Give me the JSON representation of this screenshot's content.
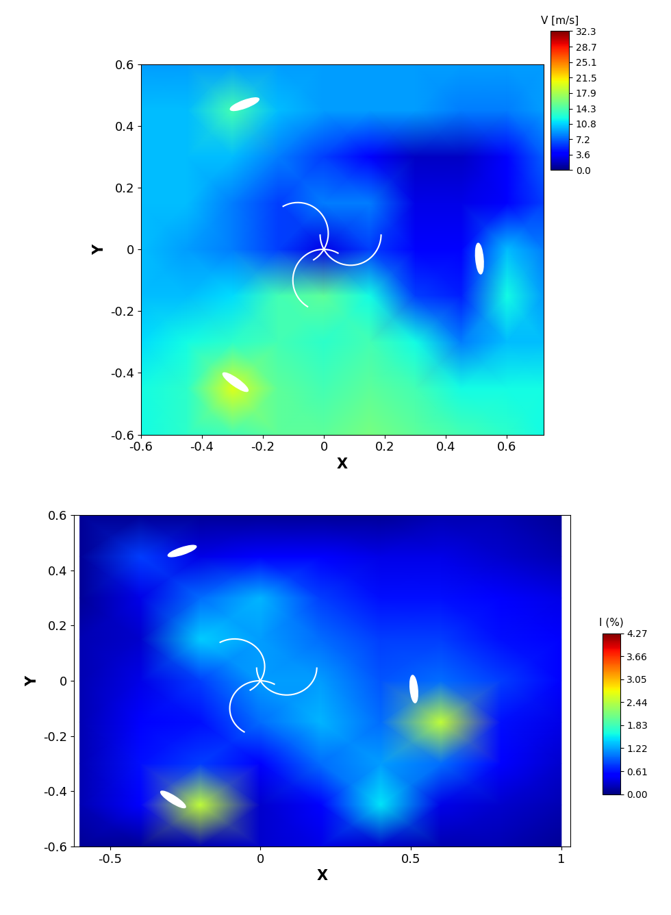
{
  "chart_data": [
    {
      "type": "heatmap",
      "xlabel": "X",
      "ylabel": "Y",
      "xlim": [
        -0.6,
        0.72
      ],
      "ylim": [
        -0.6,
        0.6
      ],
      "xticks": [
        -0.6,
        -0.4,
        -0.2,
        0,
        0.2,
        0.4,
        0.6
      ],
      "yticks": [
        -0.6,
        -0.4,
        -0.2,
        0,
        0.2,
        0.4,
        0.6
      ],
      "x": [
        -0.6,
        -0.45,
        -0.3,
        -0.15,
        0,
        0.15,
        0.3,
        0.45,
        0.6,
        0.72
      ],
      "y": [
        -0.6,
        -0.45,
        -0.3,
        -0.15,
        0,
        0.15,
        0.3,
        0.45,
        0.6
      ],
      "cells": [
        [
          12,
          13,
          14,
          15,
          15,
          16,
          15,
          14,
          13,
          12
        ],
        [
          12,
          13,
          20,
          15,
          14,
          15,
          14,
          12,
          12,
          12
        ],
        [
          11,
          12,
          13,
          14,
          13,
          14,
          12,
          8,
          10,
          10
        ],
        [
          10,
          10,
          11,
          14,
          15,
          12,
          6,
          5,
          12,
          9
        ],
        [
          10,
          9,
          8,
          6,
          3,
          6,
          4,
          4,
          10,
          8
        ],
        [
          10,
          10,
          8,
          6,
          8,
          8,
          3,
          3,
          4,
          6
        ],
        [
          10,
          10,
          10,
          8,
          6,
          4,
          2,
          2,
          4,
          7
        ],
        [
          10,
          10,
          14,
          10,
          9,
          9,
          9,
          8,
          8,
          9
        ],
        [
          9,
          9,
          9,
          9,
          9,
          9,
          9,
          9,
          9,
          9
        ]
      ],
      "colorbar": {
        "label": "V [m/s]",
        "range": [
          0,
          32.3
        ],
        "ticks": [
          {
            "value": 0,
            "label": "0.0"
          },
          3.6,
          7.2,
          10.8,
          14.3,
          17.9,
          21.5,
          25.1,
          28.7,
          32.3
        ]
      }
    },
    {
      "type": "heatmap",
      "xlabel": "X",
      "ylabel": "Y",
      "xlim": [
        -0.62,
        1.03
      ],
      "ylim": [
        -0.6,
        0.6
      ],
      "xticks": [
        -0.5,
        0,
        0.5,
        1
      ],
      "yticks": [
        -0.6,
        -0.4,
        -0.2,
        0,
        0.2,
        0.4,
        0.6
      ],
      "x": [
        -0.6,
        -0.4,
        -0.2,
        0,
        0.2,
        0.4,
        0.6,
        0.8,
        1.0
      ],
      "y": [
        -0.6,
        -0.45,
        -0.3,
        -0.15,
        0,
        0.15,
        0.3,
        0.45,
        0.6
      ],
      "cells": [
        [
          0.1,
          0.1,
          0.2,
          0.3,
          0.4,
          0.3,
          0.2,
          0.2,
          0.1
        ],
        [
          0.2,
          0.5,
          2.5,
          0.3,
          0.5,
          1.5,
          0.4,
          0.3,
          0.2
        ],
        [
          0.2,
          0.6,
          0.8,
          0.5,
          1.0,
          1.2,
          1.0,
          0.5,
          0.3
        ],
        [
          0.2,
          0.5,
          0.6,
          1.0,
          1.3,
          1.0,
          2.5,
          0.6,
          0.4
        ],
        [
          0.2,
          0.4,
          0.8,
          1.2,
          1.2,
          0.9,
          1.0,
          0.8,
          0.5
        ],
        [
          0.2,
          0.3,
          1.4,
          1.2,
          1.0,
          0.8,
          0.8,
          0.6,
          0.5
        ],
        [
          0.1,
          0.4,
          1.0,
          1.3,
          0.8,
          0.6,
          0.6,
          0.5,
          0.4
        ],
        [
          0.1,
          0.8,
          0.4,
          0.5,
          0.5,
          0.4,
          0.4,
          0.3,
          0.2
        ],
        [
          0.1,
          0.1,
          0.1,
          0.1,
          0.1,
          0.1,
          0.2,
          0.2,
          0.1
        ]
      ],
      "colorbar": {
        "label": "I (%)",
        "range": [
          0,
          4.27
        ],
        "ticks": [
          {
            "value": 0,
            "label": "0.00"
          },
          0.61,
          1.22,
          1.83,
          2.44,
          3.05,
          3.66,
          4.27
        ]
      }
    }
  ]
}
